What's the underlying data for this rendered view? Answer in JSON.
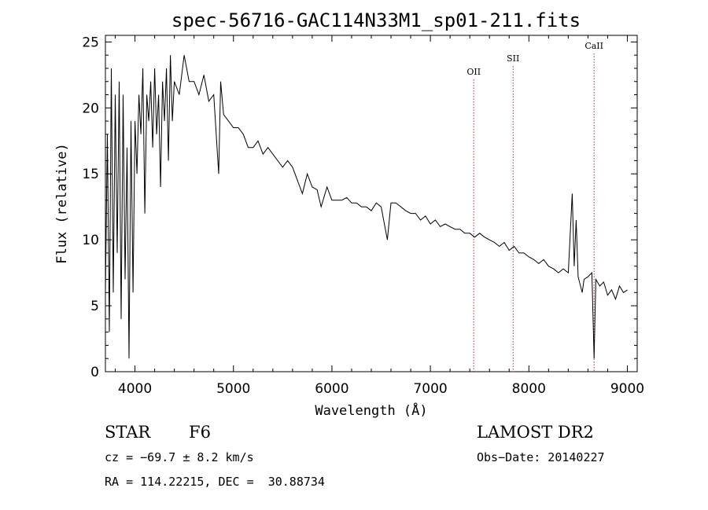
{
  "chart_data": {
    "type": "line",
    "title": "spec-56716-GAC114N33M1_sp01-211.fits",
    "xlabel": "Wavelength (Å)",
    "ylabel": "Flux (relative)",
    "xlim": [
      3700,
      9100
    ],
    "ylim": [
      0,
      25.5
    ],
    "xticks": [
      4000,
      5000,
      6000,
      7000,
      8000,
      9000
    ],
    "yticks": [
      0,
      5,
      10,
      15,
      20,
      25
    ],
    "grid": false,
    "series": [
      {
        "x": [
          3700,
          3720,
          3740,
          3760,
          3780,
          3800,
          3820,
          3840,
          3860,
          3880,
          3900,
          3920,
          3940,
          3960,
          3980,
          4000,
          4020,
          4040,
          4060,
          4080,
          4100,
          4120,
          4140,
          4160,
          4180,
          4200,
          4220,
          4240,
          4260,
          4280,
          4300,
          4320,
          4340,
          4360,
          4380,
          4400,
          4450,
          4500,
          4550,
          4600,
          4650,
          4700,
          4750,
          4800,
          4850,
          4870,
          4900,
          4950,
          5000,
          5050,
          5100,
          5150,
          5200,
          5250,
          5300,
          5350,
          5400,
          5450,
          5500,
          5550,
          5600,
          5650,
          5700,
          5750,
          5800,
          5850,
          5890,
          5950,
          6000,
          6050,
          6100,
          6150,
          6200,
          6250,
          6300,
          6350,
          6400,
          6450,
          6500,
          6563,
          6600,
          6650,
          6700,
          6750,
          6800,
          6850,
          6900,
          6950,
          7000,
          7050,
          7100,
          7150,
          7200,
          7250,
          7300,
          7350,
          7400,
          7450,
          7500,
          7550,
          7600,
          7650,
          7700,
          7750,
          7800,
          7850,
          7900,
          7950,
          8000,
          8050,
          8100,
          8150,
          8200,
          8250,
          8300,
          8350,
          8400,
          8440,
          8460,
          8480,
          8500,
          8542,
          8560,
          8600,
          8640,
          8662,
          8680,
          8720,
          8760,
          8800,
          8840,
          8880,
          8920,
          8960,
          9000
        ],
        "y": [
          6,
          18,
          3,
          23,
          6,
          21,
          9,
          22,
          4,
          21,
          7,
          17,
          1,
          19,
          6,
          19,
          15,
          21,
          18,
          23,
          12,
          21,
          19,
          22,
          17,
          23,
          18,
          21,
          14,
          22,
          19,
          23,
          16,
          24,
          19,
          22,
          21,
          24,
          22,
          22,
          21,
          22.5,
          20.5,
          21,
          15,
          22,
          19.5,
          19,
          18.5,
          18.5,
          18,
          17,
          17,
          17.5,
          16.5,
          17,
          16.5,
          16,
          15.5,
          16,
          15.5,
          14.5,
          13.5,
          15,
          14,
          13.8,
          12.5,
          14,
          13,
          13,
          13,
          13.2,
          12.8,
          12.8,
          12.5,
          12.5,
          12.2,
          12.8,
          12.5,
          10,
          12.8,
          12.8,
          12.5,
          12.2,
          12,
          12,
          11.5,
          11.8,
          11.2,
          11.5,
          11,
          11.2,
          11,
          10.8,
          10.8,
          10.5,
          10.5,
          10.2,
          10.5,
          10.2,
          10,
          9.8,
          9.5,
          9.8,
          9.2,
          9.5,
          9,
          9,
          8.7,
          8.5,
          8.2,
          8.5,
          8,
          7.8,
          7.5,
          7.8,
          7.5,
          13.5,
          8,
          11.5,
          7.2,
          6,
          7,
          7.2,
          7.5,
          1,
          7,
          6.5,
          6.8,
          5.8,
          6.2,
          5.5,
          6.5,
          6,
          6.2
        ]
      }
    ],
    "lines": [
      {
        "label": "OII",
        "x": 7440
      },
      {
        "label": "SII",
        "x": 7840
      },
      {
        "label": "CaII",
        "x": 8662
      }
    ]
  },
  "info": {
    "class": "STAR",
    "subclass": "F6",
    "survey": "LAMOST DR2",
    "cz": "cz = −69.7 ± 8.2 km/s",
    "obs_date": "Obs−Date: 20140227",
    "radec": "RA = 114.22215, DEC =  30.88734"
  }
}
